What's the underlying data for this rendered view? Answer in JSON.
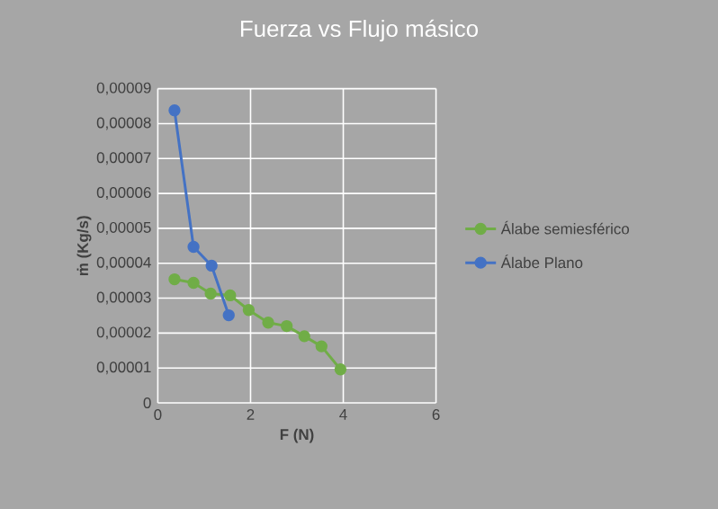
{
  "chart_data": {
    "type": "line",
    "title": "Fuerza vs Flujo másico",
    "xlabel": "F (N)",
    "ylabel": "ṁ (Kg/s)",
    "series": [
      {
        "name": "Álabe semiesférico",
        "color": "#70ad47",
        "x": [
          0.36,
          0.77,
          1.14,
          1.56,
          1.96,
          2.38,
          2.78,
          3.16,
          3.53,
          3.94
        ],
        "values": [
          3.54e-05,
          3.44e-05,
          3.13e-05,
          3.08e-05,
          2.66e-05,
          2.3e-05,
          2.2e-05,
          1.91e-05,
          1.62e-05,
          9.6e-06
        ]
      },
      {
        "name": "Álabe Plano",
        "color": "#4472c4",
        "x": [
          0.36,
          0.77,
          1.16,
          1.53
        ],
        "values": [
          8.38e-05,
          4.47e-05,
          3.93e-05,
          2.51e-05
        ]
      }
    ],
    "xlim": [
      0,
      6
    ],
    "xticks": [
      0,
      2,
      4,
      6
    ],
    "ylim": [
      0,
      9e-05
    ],
    "yticks": [
      0,
      {
        "value": 1e-05,
        "label": "0,00001"
      },
      {
        "value": 2e-05,
        "label": "0,00002"
      },
      {
        "value": 3e-05,
        "label": "0,00003"
      },
      {
        "value": 4e-05,
        "label": "0,00004"
      },
      {
        "value": 5e-05,
        "label": "0,00005"
      },
      {
        "value": 6e-05,
        "label": "0,00006"
      },
      {
        "value": 7e-05,
        "label": "0,00007"
      },
      {
        "value": 8e-05,
        "label": "0,00008"
      },
      {
        "value": 9e-05,
        "label": "0,00009"
      }
    ],
    "grid": true,
    "legend": "right",
    "marker": "circle",
    "line_style": "solid"
  }
}
